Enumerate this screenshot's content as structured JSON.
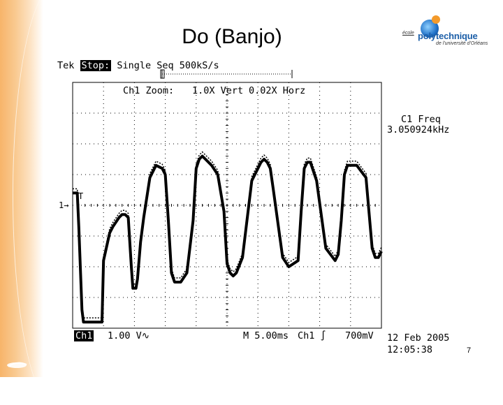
{
  "slide": {
    "title": "Do (Banjo)",
    "page_number": "7"
  },
  "logo": {
    "ecole": "école",
    "name": "polytechnique",
    "university": "de l'université d'Orléans"
  },
  "scope": {
    "brand": "Tek",
    "state": "Stop:",
    "acquisition": "Single Seq",
    "sample_rate": "500kS/s",
    "zoom_label": "Ch1 Zoom:",
    "zoom_vert": "1.0X Vert",
    "zoom_horz": "0.02X Horz",
    "meas_label": "C1 Freq",
    "meas_value": "3.050924kHz",
    "ch_marker": "1→",
    "trig_marker": "T",
    "ch_label": "Ch1",
    "ch_scale": "1.00 V∿",
    "timebase": "M 5.00ms",
    "trigger": "Ch1 ∫",
    "trigger_level": "700mV",
    "date": "12 Feb 2005",
    "time": "12:05:38"
  },
  "chart_data": {
    "type": "line",
    "x_label": "",
    "y_label": "",
    "grid": true,
    "x_divisions": 10,
    "y_divisions": 8,
    "series": [
      {
        "x_div": [
          0.0,
          0.15,
          0.2,
          0.3,
          0.35,
          0.4,
          0.5,
          0.8,
          0.95,
          1.0,
          1.2,
          1.3,
          1.5,
          1.6,
          1.7,
          1.8,
          1.9,
          1.95,
          2.05,
          2.1,
          2.2,
          2.3,
          2.5,
          2.7,
          2.9,
          3.0,
          3.1,
          3.2,
          3.3,
          3.5,
          3.7,
          3.9,
          4.0,
          4.1,
          4.2,
          4.3,
          4.5,
          4.7,
          4.9,
          5.0,
          5.1,
          5.2,
          5.3,
          5.5,
          5.8,
          6.1,
          6.2,
          6.3,
          6.4,
          6.5,
          6.8,
          7.0,
          7.3,
          7.4,
          7.5,
          7.6,
          7.7,
          7.9,
          8.2,
          8.5,
          8.6,
          8.7,
          8.8,
          8.9,
          9.2,
          9.5,
          9.7,
          9.8,
          9.9,
          10.0
        ],
        "y_div": [
          4.4,
          4.4,
          3.3,
          0.6,
          0.2,
          0.2,
          0.2,
          0.2,
          0.2,
          2.2,
          3.1,
          3.3,
          3.6,
          3.7,
          3.7,
          3.6,
          2.0,
          1.3,
          1.3,
          1.6,
          2.8,
          3.6,
          4.9,
          5.3,
          5.2,
          5.0,
          3.5,
          1.8,
          1.5,
          1.5,
          1.8,
          3.5,
          5.2,
          5.5,
          5.6,
          5.5,
          5.3,
          5.0,
          3.8,
          2.1,
          1.8,
          1.7,
          1.8,
          2.3,
          4.8,
          5.4,
          5.5,
          5.4,
          5.2,
          4.5,
          2.3,
          2.0,
          2.2,
          3.8,
          5.2,
          5.4,
          5.4,
          4.8,
          2.6,
          2.2,
          2.4,
          3.5,
          5.0,
          5.3,
          5.3,
          4.9,
          2.6,
          2.3,
          2.3,
          2.5
        ]
      }
    ]
  }
}
